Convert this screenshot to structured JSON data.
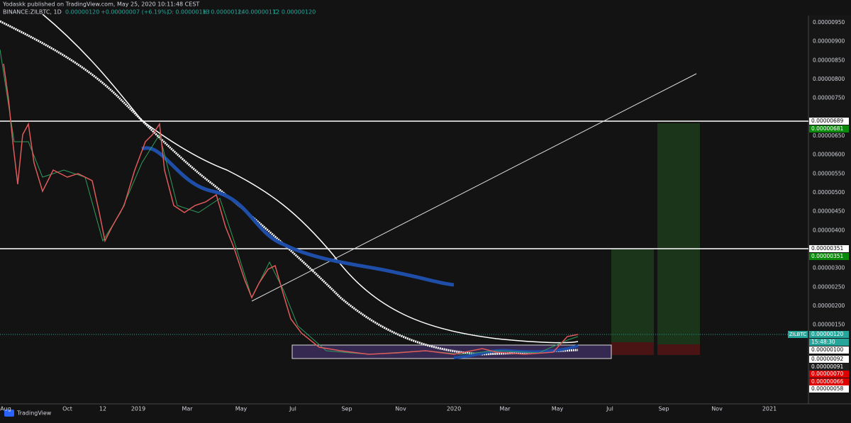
{
  "header": {
    "publisher": "Yodaskk published on TradingView.com, May 25, 2020 10:11:48 CEST",
    "symbol": "BINANCE:ZILBTC, 1D",
    "last": "0.00000120",
    "change": "+0.00000007 (+6.19%)",
    "open": "O: 0.00000113",
    "high": "H: 0.00000124",
    "low": "L: 0.00000112",
    "close": "C: 0.00000120"
  },
  "price_axis": [
    "0.00000950",
    "0.00000900",
    "0.00000850",
    "0.00000800",
    "0.00000750",
    "0.00000650",
    "0.00000600",
    "0.00000550",
    "0.00000500",
    "0.00000450",
    "0.00000400",
    "0.00000300",
    "0.00000250",
    "0.00000200",
    "0.00000150"
  ],
  "time_axis": [
    "Aug",
    "Oct",
    "12",
    "2019",
    "Mar",
    "May",
    "Jul",
    "Sep",
    "Nov",
    "2020",
    "Mar",
    "May",
    "Jul",
    "Sep",
    "Nov",
    "2021"
  ],
  "price_tags": [
    {
      "text": "0.00000689",
      "bg": "#ffffff",
      "fg": "#000000"
    },
    {
      "text": "0.00000681",
      "bg": "#0a8a0a",
      "fg": "#ffffff"
    },
    {
      "text": "0.00000351",
      "bg": "#ffffff",
      "fg": "#000000"
    },
    {
      "text": "0.00000351",
      "bg": "#0a8a0a",
      "fg": "#ffffff"
    },
    {
      "text": "0.00000120",
      "bg": "#26a69a",
      "fg": "#ffffff"
    },
    {
      "text": "15:48:30",
      "bg": "#26a69a",
      "fg": "#ffffff"
    },
    {
      "text": "0.00000100",
      "bg": "#ffffff",
      "fg": "#000000"
    },
    {
      "text": "0.00000092",
      "bg": "#ffffff",
      "fg": "#000000"
    },
    {
      "text": "0.00000091",
      "bg": "#1e1e1e",
      "fg": "#ffffff"
    },
    {
      "text": "0.00000070",
      "bg": "#e00000",
      "fg": "#ffffff"
    },
    {
      "text": "0.00000066",
      "bg": "#e00000",
      "fg": "#ffffff"
    },
    {
      "text": "0.00000058",
      "bg": "#ffffff",
      "fg": "#000000"
    }
  ],
  "symbol_tag": "ZILBTC",
  "footer": "TradingView"
}
